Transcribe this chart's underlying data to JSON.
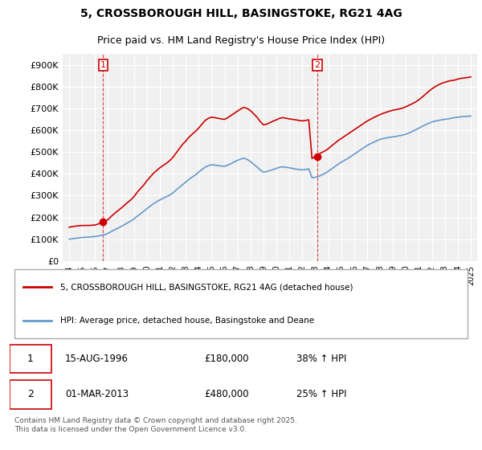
{
  "title_line1": "5, CROSSBOROUGH HILL, BASINGSTOKE, RG21 4AG",
  "title_line2": "Price paid vs. HM Land Registry's House Price Index (HPI)",
  "ylabel": "",
  "bg_color": "#ffffff",
  "plot_bg_color": "#f0f0f0",
  "grid_color": "#ffffff",
  "red_color": "#cc0000",
  "blue_color": "#6699cc",
  "marker1_date_idx": 2.75,
  "marker2_date_idx": 19.25,
  "sale1_label": "15-AUG-1996",
  "sale1_price": "£180,000",
  "sale1_hpi": "38% ↑ HPI",
  "sale2_label": "01-MAR-2013",
  "sale2_price": "£480,000",
  "sale2_hpi": "25% ↑ HPI",
  "legend_line1": "5, CROSSBOROUGH HILL, BASINGSTOKE, RG21 4AG (detached house)",
  "legend_line2": "HPI: Average price, detached house, Basingstoke and Deane",
  "footer": "Contains HM Land Registry data © Crown copyright and database right 2025.\nThis data is licensed under the Open Government Licence v3.0.",
  "ylim": [
    0,
    950000
  ],
  "yticks": [
    0,
    100000,
    200000,
    300000,
    400000,
    500000,
    600000,
    700000,
    800000,
    900000
  ],
  "years": [
    "1994",
    "1995",
    "1996",
    "1997",
    "1998",
    "1999",
    "2000",
    "2001",
    "2002",
    "2003",
    "2004",
    "2005",
    "2006",
    "2007",
    "2008",
    "2009",
    "2010",
    "2011",
    "2012",
    "2013",
    "2014",
    "2015",
    "2016",
    "2017",
    "2018",
    "2019",
    "2020",
    "2021",
    "2022",
    "2023",
    "2024",
    "2025"
  ],
  "red_x": [
    1994.0,
    1994.25,
    1994.5,
    1994.75,
    1995.0,
    1995.25,
    1995.5,
    1995.75,
    1996.0,
    1996.25,
    1996.5,
    1996.75,
    1997.0,
    1997.25,
    1997.5,
    1997.75,
    1998.0,
    1998.25,
    1998.5,
    1998.75,
    1999.0,
    1999.25,
    1999.5,
    1999.75,
    2000.0,
    2000.25,
    2000.5,
    2000.75,
    2001.0,
    2001.25,
    2001.5,
    2001.75,
    2002.0,
    2002.25,
    2002.5,
    2002.75,
    2003.0,
    2003.25,
    2003.5,
    2003.75,
    2004.0,
    2004.25,
    2004.5,
    2004.75,
    2005.0,
    2005.25,
    2005.5,
    2005.75,
    2006.0,
    2006.25,
    2006.5,
    2006.75,
    2007.0,
    2007.25,
    2007.5,
    2007.75,
    2008.0,
    2008.25,
    2008.5,
    2008.75,
    2009.0,
    2009.25,
    2009.5,
    2009.75,
    2010.0,
    2010.25,
    2010.5,
    2010.75,
    2011.0,
    2011.25,
    2011.5,
    2011.75,
    2012.0,
    2012.25,
    2012.5,
    2012.75,
    2013.0,
    2013.25,
    2013.5,
    2013.75,
    2014.0,
    2014.25,
    2014.5,
    2014.75,
    2015.0,
    2015.25,
    2015.5,
    2015.75,
    2016.0,
    2016.25,
    2016.5,
    2016.75,
    2017.0,
    2017.25,
    2017.5,
    2017.75,
    2018.0,
    2018.25,
    2018.5,
    2018.75,
    2019.0,
    2019.25,
    2019.5,
    2019.75,
    2020.0,
    2020.25,
    2020.5,
    2020.75,
    2021.0,
    2021.25,
    2021.5,
    2021.75,
    2022.0,
    2022.25,
    2022.5,
    2022.75,
    2023.0,
    2023.25,
    2023.5,
    2023.75,
    2024.0,
    2024.25,
    2024.5,
    2024.75,
    2025.0
  ],
  "red_y": [
    155000,
    158000,
    160000,
    162000,
    163000,
    163000,
    163000,
    164000,
    165000,
    170000,
    175000,
    180000,
    190000,
    205000,
    218000,
    230000,
    242000,
    255000,
    268000,
    280000,
    295000,
    315000,
    332000,
    348000,
    368000,
    385000,
    402000,
    415000,
    428000,
    438000,
    448000,
    460000,
    475000,
    495000,
    515000,
    535000,
    550000,
    568000,
    582000,
    595000,
    610000,
    628000,
    645000,
    655000,
    660000,
    658000,
    655000,
    652000,
    650000,
    658000,
    668000,
    678000,
    688000,
    698000,
    705000,
    700000,
    690000,
    675000,
    660000,
    640000,
    625000,
    628000,
    635000,
    642000,
    648000,
    655000,
    658000,
    655000,
    652000,
    650000,
    648000,
    645000,
    643000,
    645000,
    648000,
    470000,
    480000,
    490000,
    498000,
    505000,
    515000,
    528000,
    540000,
    552000,
    562000,
    572000,
    582000,
    592000,
    602000,
    612000,
    622000,
    632000,
    642000,
    650000,
    658000,
    665000,
    672000,
    678000,
    683000,
    688000,
    692000,
    695000,
    698000,
    702000,
    708000,
    715000,
    722000,
    730000,
    740000,
    752000,
    765000,
    778000,
    790000,
    800000,
    808000,
    815000,
    820000,
    825000,
    828000,
    830000,
    835000,
    838000,
    840000,
    842000,
    845000
  ],
  "blue_x": [
    1994.0,
    1994.25,
    1994.5,
    1994.75,
    1995.0,
    1995.25,
    1995.5,
    1995.75,
    1996.0,
    1996.25,
    1996.5,
    1996.75,
    1997.0,
    1997.25,
    1997.5,
    1997.75,
    1998.0,
    1998.25,
    1998.5,
    1998.75,
    1999.0,
    1999.25,
    1999.5,
    1999.75,
    2000.0,
    2000.25,
    2000.5,
    2000.75,
    2001.0,
    2001.25,
    2001.5,
    2001.75,
    2002.0,
    2002.25,
    2002.5,
    2002.75,
    2003.0,
    2003.25,
    2003.5,
    2003.75,
    2004.0,
    2004.25,
    2004.5,
    2004.75,
    2005.0,
    2005.25,
    2005.5,
    2005.75,
    2006.0,
    2006.25,
    2006.5,
    2006.75,
    2007.0,
    2007.25,
    2007.5,
    2007.75,
    2008.0,
    2008.25,
    2008.5,
    2008.75,
    2009.0,
    2009.25,
    2009.5,
    2009.75,
    2010.0,
    2010.25,
    2010.5,
    2010.75,
    2011.0,
    2011.25,
    2011.5,
    2011.75,
    2012.0,
    2012.25,
    2012.5,
    2012.75,
    2013.0,
    2013.25,
    2013.5,
    2013.75,
    2014.0,
    2014.25,
    2014.5,
    2014.75,
    2015.0,
    2015.25,
    2015.5,
    2015.75,
    2016.0,
    2016.25,
    2016.5,
    2016.75,
    2017.0,
    2017.25,
    2017.5,
    2017.75,
    2018.0,
    2018.25,
    2018.5,
    2018.75,
    2019.0,
    2019.25,
    2019.5,
    2019.75,
    2020.0,
    2020.25,
    2020.5,
    2020.75,
    2021.0,
    2021.25,
    2021.5,
    2021.75,
    2022.0,
    2022.25,
    2022.5,
    2022.75,
    2023.0,
    2023.25,
    2023.5,
    2023.75,
    2024.0,
    2024.25,
    2024.5,
    2024.75,
    2025.0
  ],
  "blue_y": [
    100000,
    102000,
    104000,
    106000,
    108000,
    109000,
    110000,
    111000,
    112000,
    115000,
    118000,
    121000,
    127000,
    135000,
    143000,
    150000,
    158000,
    166000,
    175000,
    183000,
    193000,
    205000,
    216000,
    228000,
    240000,
    252000,
    262000,
    272000,
    280000,
    288000,
    295000,
    302000,
    312000,
    325000,
    338000,
    350000,
    362000,
    375000,
    385000,
    395000,
    408000,
    420000,
    430000,
    438000,
    442000,
    440000,
    438000,
    436000,
    435000,
    440000,
    447000,
    455000,
    462000,
    468000,
    472000,
    466000,
    456000,
    444000,
    432000,
    418000,
    408000,
    410000,
    415000,
    420000,
    425000,
    430000,
    432000,
    430000,
    428000,
    425000,
    422000,
    420000,
    418000,
    420000,
    423000,
    382000,
    384000,
    388000,
    395000,
    402000,
    412000,
    422000,
    433000,
    444000,
    453000,
    462000,
    470000,
    480000,
    490000,
    500000,
    510000,
    520000,
    530000,
    538000,
    545000,
    552000,
    558000,
    562000,
    565000,
    568000,
    570000,
    572000,
    575000,
    578000,
    582000,
    588000,
    595000,
    602000,
    610000,
    618000,
    625000,
    632000,
    638000,
    642000,
    645000,
    648000,
    650000,
    652000,
    655000,
    658000,
    660000,
    662000,
    663000,
    664000,
    665000
  ]
}
